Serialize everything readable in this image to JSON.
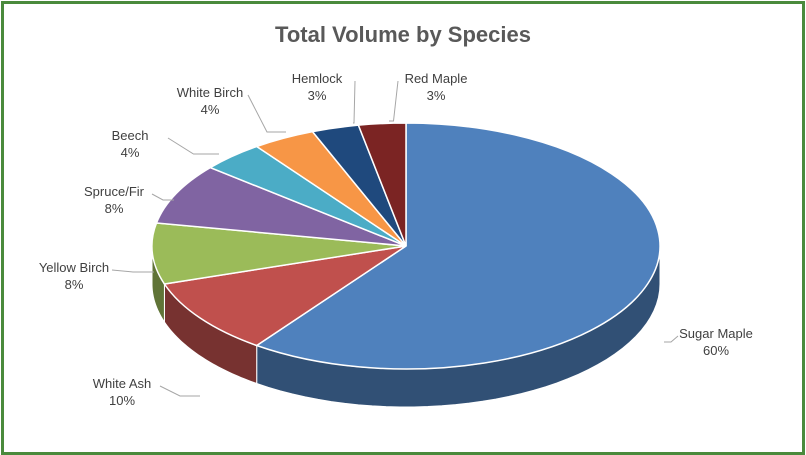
{
  "chart_data": {
    "type": "pie",
    "title": "Total Volume by Species",
    "slices": [
      {
        "label": "Sugar Maple",
        "value": 60,
        "pct_label": "60%",
        "color": "#4f81bd"
      },
      {
        "label": "White Ash",
        "value": 10,
        "pct_label": "10%",
        "color": "#c0504d"
      },
      {
        "label": "Yellow Birch",
        "value": 8,
        "pct_label": "8%",
        "color": "#9bbb59"
      },
      {
        "label": "Spruce/Fir",
        "value": 8,
        "pct_label": "8%",
        "color": "#8064a2"
      },
      {
        "label": "Beech",
        "value": 4,
        "pct_label": "4%",
        "color": "#4bacc6"
      },
      {
        "label": "White Birch",
        "value": 4,
        "pct_label": "4%",
        "color": "#f79646"
      },
      {
        "label": "Hemlock",
        "value": 3,
        "pct_label": "3%",
        "color": "#1f497d"
      },
      {
        "label": "Red Maple",
        "value": 3,
        "pct_label": "3%",
        "color": "#7b2423"
      }
    ],
    "legend": "none",
    "style": "3d-pie"
  },
  "frame_color": "#4a8a3c"
}
